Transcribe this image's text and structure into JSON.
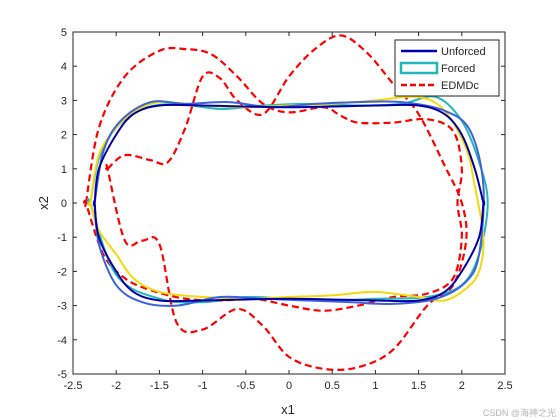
{
  "chart_data": {
    "type": "line",
    "title": "",
    "xlabel": "x1",
    "ylabel": "x2",
    "xlim": [
      -2.5,
      2.5
    ],
    "ylim": [
      -5,
      5
    ],
    "xticks": [
      "-2.5",
      "-2",
      "-1.5",
      "-1",
      "-0.5",
      "0",
      "0.5",
      "1",
      "1.5",
      "2",
      "2.5"
    ],
    "yticks": [
      "-5",
      "-4",
      "-3",
      "-2",
      "-1",
      "0",
      "1",
      "2",
      "3",
      "4",
      "5"
    ],
    "grid": false,
    "legend_position": "top-right",
    "series": [
      {
        "name": "Unforced",
        "color": "#0000a6",
        "style": "solid",
        "x": [
          -2.25,
          -2.2,
          -2.0,
          -1.8,
          -1.5,
          -1.0,
          -0.5,
          0.0,
          0.5,
          1.0,
          1.5,
          1.8,
          2.0,
          2.15,
          2.25,
          2.25,
          2.2,
          2.0,
          1.8,
          1.5,
          1.0,
          0.5,
          0.0,
          -0.5,
          -1.0,
          -1.5,
          -1.8,
          -2.0,
          -2.2,
          -2.25
        ],
        "y": [
          0.0,
          1.0,
          2.0,
          2.6,
          2.85,
          2.85,
          2.82,
          2.8,
          2.82,
          2.85,
          2.85,
          2.6,
          2.0,
          1.0,
          0.0,
          0.0,
          -1.0,
          -2.0,
          -2.6,
          -2.85,
          -2.85,
          -2.82,
          -2.8,
          -2.82,
          -2.85,
          -2.85,
          -2.6,
          -2.0,
          -1.0,
          0.0
        ]
      },
      {
        "name": "Forced",
        "color": "#24b6b8",
        "style": "solid",
        "x": [
          -2.3,
          -2.2,
          -2.0,
          -1.7,
          -1.3,
          -0.8,
          -0.3,
          0.2,
          0.8,
          1.3,
          1.7,
          2.0,
          2.2,
          2.3,
          2.2,
          2.0,
          1.6,
          1.0,
          0.5,
          0.0,
          -0.5,
          -1.0,
          -1.5,
          -2.0,
          -2.3
        ],
        "y": [
          0.0,
          1.3,
          2.2,
          2.75,
          2.9,
          2.75,
          2.85,
          2.9,
          2.85,
          2.9,
          3.1,
          2.4,
          1.2,
          0.0,
          -1.5,
          -2.4,
          -2.75,
          -2.8,
          -2.85,
          -2.8,
          -2.75,
          -2.9,
          -2.8,
          -2.1,
          0.0
        ]
      },
      {
        "name": "EDMDc",
        "color": "#ff0000",
        "style": "dashed",
        "x": [
          -2.35,
          -2.2,
          -1.9,
          -1.5,
          -1.2,
          -0.9,
          -0.6,
          -0.3,
          0.0,
          0.4,
          0.6,
          0.8,
          1.2,
          1.6,
          1.9,
          2.0,
          1.95,
          2.0,
          1.9,
          1.6,
          1.2,
          0.8,
          0.4,
          0.0,
          -0.4,
          -0.8,
          -1.2,
          -1.6,
          -1.9,
          -2.15,
          -2.35
        ],
        "y": [
          0.0,
          2.2,
          3.7,
          4.45,
          4.5,
          4.35,
          3.7,
          2.9,
          2.65,
          2.8,
          2.55,
          2.35,
          2.35,
          2.45,
          2.1,
          1.0,
          0.0,
          -1.0,
          -2.2,
          -2.65,
          -2.75,
          -3.0,
          -3.15,
          -3.0,
          -2.8,
          -2.85,
          -2.8,
          -2.55,
          -2.2,
          -1.5,
          0.0
        ]
      },
      {
        "color": "#ff0000",
        "style": "dashed",
        "x": [
          -2.1,
          -1.9,
          -1.6,
          -1.4,
          -1.2,
          -1.0,
          -0.8,
          -0.6,
          -0.3,
          0.0,
          0.3,
          0.6,
          0.9,
          1.2,
          1.5,
          1.8,
          2.0,
          2.05,
          1.9,
          1.6,
          1.2,
          0.8,
          0.4,
          0.0,
          -0.3,
          -0.6,
          -1.0,
          -1.3,
          -1.5,
          -1.7,
          -1.9,
          -2.1
        ],
        "y": [
          1.0,
          1.4,
          1.25,
          1.2,
          2.2,
          3.7,
          3.65,
          3.0,
          2.6,
          3.7,
          4.5,
          4.9,
          4.4,
          3.5,
          2.6,
          1.1,
          0.0,
          -1.1,
          -2.4,
          -3.0,
          -4.3,
          -4.8,
          -4.85,
          -4.5,
          -3.6,
          -3.1,
          -3.7,
          -3.5,
          -1.2,
          -1.1,
          -1.1,
          1.0
        ]
      },
      {
        "color": "#f5d90a",
        "style": "solid",
        "x": [
          -2.3,
          -2.2,
          -2.0,
          -1.8,
          -1.5,
          -1.0,
          -0.5,
          0.0,
          0.5,
          1.0,
          1.5,
          1.8,
          2.05,
          2.15,
          2.25,
          2.2,
          2.05,
          1.8,
          1.5,
          1.0,
          0.5,
          0.0,
          -0.5,
          -1.0,
          -1.5,
          -1.8,
          -2.0,
          -2.2,
          -2.3
        ],
        "y": [
          0.0,
          1.4,
          2.2,
          2.65,
          2.95,
          2.85,
          2.8,
          2.85,
          2.9,
          3.0,
          3.1,
          2.7,
          1.6,
          0.5,
          -1.0,
          -2.0,
          -2.5,
          -2.85,
          -2.75,
          -2.6,
          -2.7,
          -2.75,
          -2.8,
          -2.75,
          -2.6,
          -2.2,
          -1.5,
          -0.8,
          0.0
        ]
      },
      {
        "color": "#3d63d8",
        "style": "solid",
        "x": [
          -2.25,
          -2.15,
          -1.95,
          -1.6,
          -1.2,
          -0.7,
          -0.2,
          0.3,
          0.8,
          1.3,
          1.8,
          2.1,
          2.25,
          2.2,
          2.05,
          1.7,
          1.2,
          0.7,
          0.2,
          -0.3,
          -0.8,
          -1.3,
          -1.7,
          -2.0,
          -2.2,
          -2.25
        ],
        "y": [
          0.0,
          1.5,
          2.4,
          2.95,
          2.9,
          2.95,
          2.8,
          2.9,
          2.95,
          2.95,
          2.7,
          2.1,
          0.5,
          -1.5,
          -2.3,
          -2.8,
          -2.95,
          -2.9,
          -2.85,
          -2.8,
          -2.75,
          -3.0,
          -2.9,
          -2.4,
          -1.2,
          0.0
        ]
      }
    ]
  },
  "legend": {
    "entries": [
      {
        "label": "Unforced",
        "color": "#0000a6",
        "style": "solid",
        "kind": "line"
      },
      {
        "label": "Forced",
        "color": "#24b6b8",
        "style": "solid",
        "kind": "box"
      },
      {
        "label": "EDMDc",
        "color": "#ff0000",
        "style": "dashed",
        "kind": "line"
      }
    ]
  },
  "watermark": "CSDN @海神之光"
}
